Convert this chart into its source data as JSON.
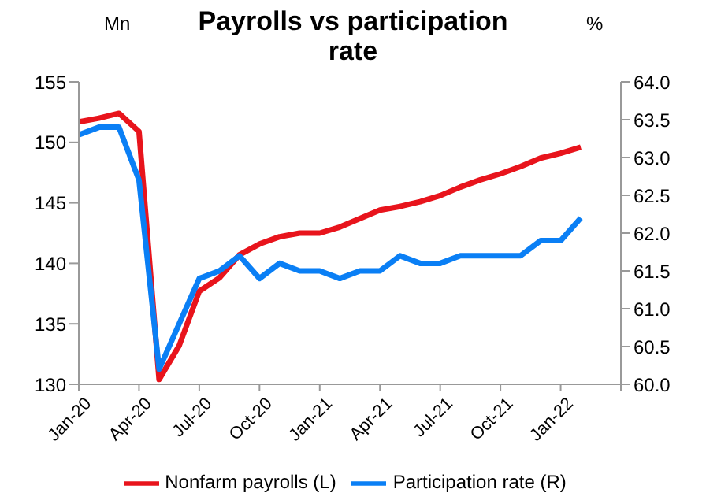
{
  "chart_data": {
    "type": "line",
    "title": "Payrolls vs participation rate",
    "ylabel": "Mn",
    "y2label": "%",
    "x": [
      "2020-01",
      "2020-02",
      "2020-03",
      "2020-04",
      "2020-05",
      "2020-06",
      "2020-07",
      "2020-08",
      "2020-09",
      "2020-10",
      "2020-11",
      "2020-12",
      "2021-01",
      "2021-02",
      "2021-03",
      "2021-04",
      "2021-05",
      "2021-06",
      "2021-07",
      "2021-08",
      "2021-09",
      "2021-10",
      "2021-11",
      "2021-12",
      "2022-01",
      "2022-02"
    ],
    "series": [
      {
        "name": "Nonfarm payrolls (L)",
        "color": "#e8141c",
        "values": [
          151.7,
          152.0,
          152.4,
          150.9,
          130.4,
          133.2,
          137.7,
          138.8,
          140.7,
          141.6,
          142.2,
          142.5,
          142.5,
          143.0,
          143.7,
          144.4,
          144.7,
          145.1,
          145.6,
          146.3,
          146.9,
          147.4,
          148.0,
          148.7,
          149.1,
          149.6
        ]
      },
      {
        "name": "Participation rate (R)",
        "color": "#0a7ff5",
        "axis": "y2",
        "values": [
          63.3,
          63.4,
          63.4,
          62.7,
          60.2,
          60.8,
          61.4,
          61.5,
          61.7,
          61.4,
          61.6,
          61.5,
          61.5,
          61.4,
          61.5,
          61.5,
          61.7,
          61.6,
          61.6,
          61.7,
          61.7,
          61.7,
          61.7,
          61.9,
          61.9,
          62.2
        ]
      }
    ],
    "xlim": [
      "2020-01",
      "2022-04"
    ],
    "xticks": [
      {
        "value": "2020-01",
        "label": "Jan-20"
      },
      {
        "value": "2020-04",
        "label": "Apr-20"
      },
      {
        "value": "2020-07",
        "label": "Jul-20"
      },
      {
        "value": "2020-10",
        "label": "Oct-20"
      },
      {
        "value": "2021-01",
        "label": "Jan-21"
      },
      {
        "value": "2021-04",
        "label": "Apr-21"
      },
      {
        "value": "2021-07",
        "label": "Jul-21"
      },
      {
        "value": "2021-10",
        "label": "Oct-21"
      },
      {
        "value": "2022-01",
        "label": "Jan-22"
      },
      {
        "value": "2022-04",
        "label": null
      }
    ],
    "ylim": [
      130,
      155
    ],
    "yticks": [
      130,
      135,
      140,
      145,
      150,
      155
    ],
    "y2lim": [
      60,
      64
    ],
    "y2ticks": [
      {
        "value": 60,
        "label": "60.0"
      },
      {
        "value": 60.5,
        "label": "60.5"
      },
      {
        "value": 61,
        "label": "61.0"
      },
      {
        "value": 61.5,
        "label": "61.5"
      },
      {
        "value": 62,
        "label": "62.0"
      },
      {
        "value": 62.5,
        "label": "62.5"
      },
      {
        "value": 63,
        "label": "63.0"
      },
      {
        "value": 63.5,
        "label": "63.5"
      },
      {
        "value": 64,
        "label": "64.0"
      }
    ],
    "grid": false,
    "legend": "bottom",
    "marker": "none",
    "line_style": "solid"
  }
}
